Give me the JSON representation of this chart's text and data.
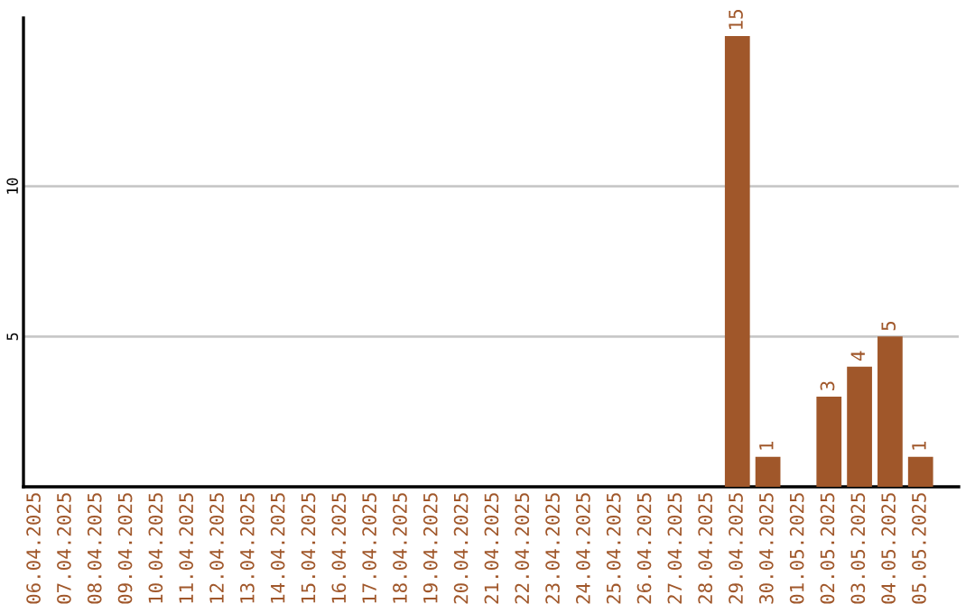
{
  "chart_data": {
    "type": "bar",
    "categories": [
      "06.04.2025",
      "07.04.2025",
      "08.04.2025",
      "09.04.2025",
      "10.04.2025",
      "11.04.2025",
      "12.04.2025",
      "13.04.2025",
      "14.04.2025",
      "15.04.2025",
      "16.04.2025",
      "17.04.2025",
      "18.04.2025",
      "19.04.2025",
      "20.04.2025",
      "21.04.2025",
      "22.04.2025",
      "23.04.2025",
      "24.04.2025",
      "25.04.2025",
      "26.04.2025",
      "27.04.2025",
      "28.04.2025",
      "29.04.2025",
      "30.04.2025",
      "01.05.2025",
      "02.05.2025",
      "03.05.2025",
      "04.05.2025",
      "05.05.2025"
    ],
    "values": [
      0,
      0,
      0,
      0,
      0,
      0,
      0,
      0,
      0,
      0,
      0,
      0,
      0,
      0,
      0,
      0,
      0,
      0,
      0,
      0,
      0,
      0,
      0,
      15,
      1,
      0,
      3,
      4,
      5,
      1
    ],
    "value_labels": [
      null,
      null,
      null,
      null,
      null,
      null,
      null,
      null,
      null,
      null,
      null,
      null,
      null,
      null,
      null,
      null,
      null,
      null,
      null,
      null,
      null,
      null,
      null,
      "15",
      "1",
      null,
      "3",
      "4",
      "5",
      "1"
    ],
    "color": "#a0572a",
    "ylim": [
      0,
      15.6
    ],
    "yticks": [
      5,
      10
    ],
    "grid": "y",
    "legend": false
  }
}
